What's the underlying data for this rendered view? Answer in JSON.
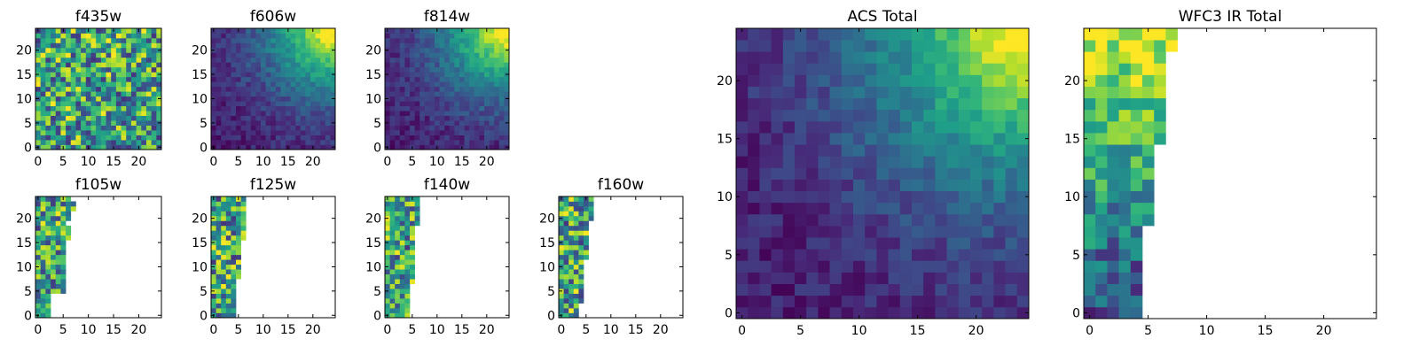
{
  "chart_data": [
    {
      "type": "heatmap",
      "title": "f435w",
      "coverage": "full",
      "pattern": "noise",
      "cmap": "viridis",
      "xlim": [
        0,
        24
      ],
      "ylim": [
        0,
        24
      ],
      "xticks": [
        "0",
        "5",
        "10",
        "15",
        "20"
      ],
      "yticks": [
        "0",
        "5",
        "10",
        "15",
        "20"
      ],
      "grid": false
    },
    {
      "type": "heatmap",
      "title": "f606w",
      "coverage": "full",
      "pattern": "gradient-top-right",
      "cmap": "viridis",
      "xlim": [
        0,
        24
      ],
      "ylim": [
        0,
        24
      ],
      "xticks": [
        "0",
        "5",
        "10",
        "15",
        "20"
      ],
      "yticks": [
        "0",
        "5",
        "10",
        "15",
        "20"
      ],
      "grid": false
    },
    {
      "type": "heatmap",
      "title": "f814w",
      "coverage": "full",
      "pattern": "gradient-top-right",
      "cmap": "viridis",
      "xlim": [
        0,
        24
      ],
      "ylim": [
        0,
        24
      ],
      "xticks": [
        "0",
        "5",
        "10",
        "15",
        "20"
      ],
      "yticks": [
        "0",
        "5",
        "10",
        "15",
        "20"
      ],
      "grid": false
    },
    {
      "type": "heatmap",
      "title": "f105w",
      "coverage": "partial-left",
      "pattern": "noise",
      "cmap": "viridis",
      "xlim": [
        0,
        24
      ],
      "ylim": [
        0,
        24
      ],
      "xticks": [
        "0",
        "5",
        "10",
        "15",
        "20"
      ],
      "yticks": [
        "0",
        "5",
        "10",
        "15",
        "20"
      ],
      "grid": false,
      "column_extents": [
        [
          0,
          2,
          23
        ],
        [
          0,
          2,
          23
        ],
        [
          0,
          2,
          23
        ],
        [
          0,
          2,
          23
        ],
        [
          0,
          2,
          22
        ],
        [
          0,
          5,
          23
        ],
        [
          0,
          5,
          23
        ],
        [
          0,
          5,
          23
        ],
        [
          0,
          5,
          24
        ],
        [
          0,
          5,
          24
        ],
        [
          0,
          5,
          24
        ],
        [
          0,
          5,
          24
        ],
        [
          0,
          5,
          24
        ],
        [
          0,
          5,
          24
        ],
        [
          0,
          5,
          24
        ],
        [
          0,
          5,
          24
        ],
        [
          0,
          6,
          24
        ],
        [
          0,
          6,
          24
        ],
        [
          0,
          6,
          24
        ],
        [
          0,
          5,
          24
        ],
        [
          0,
          6,
          24
        ],
        [
          0,
          6,
          23
        ],
        [
          0,
          7,
          23
        ],
        [
          0,
          7,
          23
        ],
        [
          0,
          6,
          23
        ]
      ]
    },
    {
      "type": "heatmap",
      "title": "f125w",
      "coverage": "partial-left",
      "pattern": "noise",
      "cmap": "viridis",
      "xlim": [
        0,
        24
      ],
      "ylim": [
        0,
        24
      ],
      "xticks": [
        "0",
        "5",
        "10",
        "15",
        "20"
      ],
      "yticks": [
        "0",
        "5",
        "10",
        "15",
        "20"
      ],
      "grid": false,
      "column_extents": [
        [
          0,
          4,
          23
        ],
        [
          0,
          4,
          23
        ],
        [
          0,
          4,
          23
        ],
        [
          0,
          4,
          23
        ],
        [
          0,
          4,
          23
        ],
        [
          0,
          4,
          23
        ],
        [
          0,
          4,
          23
        ],
        [
          0,
          4,
          23
        ],
        [
          0,
          5,
          23
        ],
        [
          0,
          5,
          23
        ],
        [
          0,
          5,
          23
        ],
        [
          0,
          5,
          23
        ],
        [
          0,
          5,
          23
        ],
        [
          0,
          5,
          23
        ],
        [
          0,
          5,
          23
        ],
        [
          0,
          5,
          23
        ],
        [
          0,
          6,
          23
        ],
        [
          0,
          6,
          23
        ],
        [
          0,
          6,
          23
        ],
        [
          0,
          6,
          23
        ],
        [
          0,
          6,
          23
        ],
        [
          0,
          6,
          23
        ],
        [
          0,
          6,
          23
        ],
        [
          0,
          6,
          23
        ],
        [
          0,
          6,
          23
        ]
      ]
    },
    {
      "type": "heatmap",
      "title": "f140w",
      "coverage": "partial-left",
      "pattern": "noise",
      "cmap": "viridis",
      "xlim": [
        0,
        24
      ],
      "ylim": [
        0,
        24
      ],
      "xticks": [
        "0",
        "5",
        "10",
        "15",
        "20"
      ],
      "yticks": [
        "0",
        "5",
        "10",
        "15",
        "20"
      ],
      "grid": false,
      "column_extents": [
        [
          0,
          4,
          24
        ],
        [
          0,
          4,
          24
        ],
        [
          0,
          4,
          24
        ],
        [
          0,
          4,
          24
        ],
        [
          0,
          4,
          24
        ],
        [
          0,
          4,
          24
        ],
        [
          0,
          4,
          24
        ],
        [
          0,
          5,
          24
        ],
        [
          0,
          5,
          24
        ],
        [
          0,
          5,
          24
        ],
        [
          0,
          5,
          24
        ],
        [
          0,
          5,
          24
        ],
        [
          0,
          5,
          24
        ],
        [
          0,
          5,
          24
        ],
        [
          0,
          5,
          24
        ],
        [
          0,
          5,
          24
        ],
        [
          0,
          5,
          24
        ],
        [
          0,
          5,
          24
        ],
        [
          0,
          5,
          24
        ],
        [
          0,
          6,
          24
        ],
        [
          0,
          6,
          24
        ],
        [
          0,
          6,
          24
        ],
        [
          0,
          6,
          24
        ],
        [
          0,
          6,
          24
        ],
        [
          0,
          6,
          24
        ]
      ]
    },
    {
      "type": "heatmap",
      "title": "f160w",
      "coverage": "partial-left",
      "pattern": "noise",
      "cmap": "viridis",
      "xlim": [
        0,
        24
      ],
      "ylim": [
        0,
        24
      ],
      "xticks": [
        "0",
        "5",
        "10",
        "15",
        "20"
      ],
      "yticks": [
        "0",
        "5",
        "10",
        "15",
        "20"
      ],
      "grid": false,
      "column_extents": [
        [
          0,
          3,
          24
        ],
        [
          0,
          3,
          24
        ],
        [
          0,
          3,
          24
        ],
        [
          0,
          4,
          24
        ],
        [
          0,
          4,
          24
        ],
        [
          0,
          4,
          24
        ],
        [
          0,
          4,
          24
        ],
        [
          0,
          4,
          24
        ],
        [
          0,
          4,
          24
        ],
        [
          0,
          4,
          24
        ],
        [
          0,
          4,
          24
        ],
        [
          0,
          4,
          24
        ],
        [
          0,
          5,
          24
        ],
        [
          0,
          5,
          24
        ],
        [
          0,
          5,
          24
        ],
        [
          0,
          5,
          24
        ],
        [
          0,
          5,
          24
        ],
        [
          0,
          5,
          24
        ],
        [
          0,
          5,
          24
        ],
        [
          0,
          5,
          24
        ],
        [
          0,
          6,
          24
        ],
        [
          0,
          6,
          24
        ],
        [
          0,
          6,
          24
        ],
        [
          0,
          6,
          24
        ],
        [
          0,
          6,
          24
        ]
      ]
    },
    {
      "type": "heatmap",
      "title": "ACS Total",
      "coverage": "full",
      "pattern": "gradient-top-right",
      "cmap": "viridis",
      "xlim": [
        0,
        24
      ],
      "ylim": [
        0,
        24
      ],
      "xticks": [
        "0",
        "5",
        "10",
        "15",
        "20"
      ],
      "yticks": [
        "0",
        "5",
        "10",
        "15",
        "20"
      ],
      "grid": false
    },
    {
      "type": "heatmap",
      "title": "WFC3 IR Total",
      "coverage": "partial-left",
      "pattern": "brighter-top",
      "cmap": "viridis",
      "xlim": [
        0,
        24
      ],
      "ylim": [
        0,
        24
      ],
      "xticks": [
        "0",
        "5",
        "10",
        "15",
        "20"
      ],
      "yticks": [
        "0",
        "5",
        "10",
        "15",
        "20"
      ],
      "grid": false,
      "column_extents": [
        [
          0,
          4,
          24
        ],
        [
          0,
          4,
          24
        ],
        [
          0,
          4,
          24
        ],
        [
          0,
          4,
          24
        ],
        [
          0,
          4,
          24
        ],
        [
          0,
          4,
          24
        ],
        [
          0,
          4,
          24
        ],
        [
          0,
          4,
          24
        ],
        [
          0,
          5,
          24
        ],
        [
          0,
          5,
          24
        ],
        [
          0,
          5,
          24
        ],
        [
          0,
          5,
          24
        ],
        [
          0,
          5,
          24
        ],
        [
          0,
          5,
          24
        ],
        [
          0,
          5,
          24
        ],
        [
          0,
          6,
          24
        ],
        [
          0,
          6,
          24
        ],
        [
          0,
          6,
          24
        ],
        [
          0,
          6,
          24
        ],
        [
          0,
          6,
          24
        ],
        [
          0,
          6,
          24
        ],
        [
          0,
          6,
          24
        ],
        [
          0,
          6,
          24
        ],
        [
          0,
          7,
          24
        ],
        [
          0,
          7,
          24
        ]
      ]
    }
  ]
}
